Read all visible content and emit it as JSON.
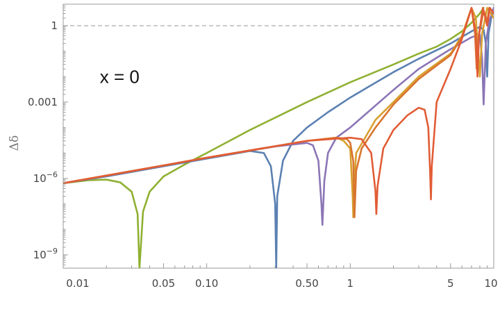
{
  "chart_data": {
    "type": "line",
    "xscale": "log",
    "yscale": "log",
    "xlim": [
      0.01,
      10
    ],
    "ylim": [
      3e-10,
      7
    ],
    "ylabel": "Δδ",
    "xlabel": "",
    "x_ticks": [
      {
        "value": 0.01,
        "label": "0.01"
      },
      {
        "value": 0.05,
        "label": "0.05"
      },
      {
        "value": 0.1,
        "label": "0.10"
      },
      {
        "value": 0.5,
        "label": "0.50"
      },
      {
        "value": 1,
        "label": "1"
      },
      {
        "value": 5,
        "label": "5"
      },
      {
        "value": 10,
        "label": "10"
      }
    ],
    "y_ticks": [
      {
        "value": 1,
        "label": "1"
      },
      {
        "value": 0.001,
        "label": "0.001"
      },
      {
        "value": 1e-06,
        "label": "10^-6",
        "base": "10",
        "exp": "−6"
      },
      {
        "value": 1e-09,
        "label": "10^-9",
        "base": "10",
        "exp": "−9"
      }
    ],
    "reference_line": {
      "y": 1,
      "style": "dashed",
      "color": "#aaaaaa"
    },
    "annotation": {
      "text": "x = 0",
      "x": 0.018,
      "y": 0.01
    },
    "grid": false,
    "legend": "none",
    "series": [
      {
        "color": "#8fb031",
        "points": [
          [
            0.01,
            6.5e-07
          ],
          [
            0.015,
            8.5e-07
          ],
          [
            0.02,
            9e-07
          ],
          [
            0.025,
            7e-07
          ],
          [
            0.03,
            3e-07
          ],
          [
            0.033,
            4e-08
          ],
          [
            0.034,
            3e-10
          ],
          [
            0.036,
            5e-08
          ],
          [
            0.04,
            3e-07
          ],
          [
            0.05,
            1.2e-06
          ],
          [
            0.07,
            3.5e-06
          ],
          [
            0.1,
            1e-05
          ],
          [
            0.2,
            8e-05
          ],
          [
            0.5,
            0.001
          ],
          [
            1,
            0.006
          ],
          [
            2,
            0.03
          ],
          [
            3,
            0.08
          ],
          [
            4,
            0.15
          ],
          [
            5,
            0.3
          ],
          [
            6,
            0.6
          ],
          [
            7,
            1.3
          ],
          [
            8,
            3
          ],
          [
            8.5,
            5
          ]
        ]
      },
      {
        "color": "#5b80b2",
        "points": [
          [
            0.01,
            6.5e-07
          ],
          [
            0.02,
            1.2e-06
          ],
          [
            0.05,
            3e-06
          ],
          [
            0.1,
            6e-06
          ],
          [
            0.2,
            1.2e-05
          ],
          [
            0.25,
            1e-05
          ],
          [
            0.28,
            3e-06
          ],
          [
            0.3,
            1e-07
          ],
          [
            0.305,
            3e-10
          ],
          [
            0.31,
            2e-07
          ],
          [
            0.34,
            5e-06
          ],
          [
            0.4,
            3e-05
          ],
          [
            0.5,
            0.0001
          ],
          [
            0.7,
            0.0004
          ],
          [
            1,
            0.0015
          ],
          [
            2,
            0.015
          ],
          [
            3,
            0.05
          ],
          [
            5,
            0.2
          ],
          [
            7,
            0.6
          ],
          [
            8,
            0.9
          ],
          [
            8.5,
            0.7
          ],
          [
            8.8,
            0.2
          ],
          [
            9,
            0.01
          ],
          [
            9.2,
            0.5
          ],
          [
            9.6,
            2
          ],
          [
            10,
            5
          ]
        ]
      },
      {
        "color": "#8b75b6",
        "points": [
          [
            0.01,
            6.5e-07
          ],
          [
            0.05,
            3.2e-06
          ],
          [
            0.1,
            6.5e-06
          ],
          [
            0.3,
            1.8e-05
          ],
          [
            0.5,
            2.5e-05
          ],
          [
            0.55,
            2e-05
          ],
          [
            0.6,
            5e-06
          ],
          [
            0.63,
            1e-07
          ],
          [
            0.64,
            1.5e-08
          ],
          [
            0.66,
            8e-07
          ],
          [
            0.7,
            1e-05
          ],
          [
            0.8,
            4e-05
          ],
          [
            1,
            0.0001
          ],
          [
            2,
            0.003
          ],
          [
            3,
            0.02
          ],
          [
            5,
            0.12
          ],
          [
            7,
            0.35
          ],
          [
            8,
            0.45
          ],
          [
            8.3,
            0.05
          ],
          [
            8.5,
            0.0008
          ],
          [
            8.8,
            0.2
          ],
          [
            9.3,
            1.5
          ],
          [
            10,
            5
          ]
        ]
      },
      {
        "color": "#d89f2f",
        "points": [
          [
            0.01,
            6.5e-07
          ],
          [
            0.1,
            6.5e-06
          ],
          [
            0.5,
            3e-05
          ],
          [
            0.8,
            4e-05
          ],
          [
            0.9,
            3e-05
          ],
          [
            1,
            1.5e-05
          ],
          [
            1.04,
            2e-07
          ],
          [
            1.05,
            3e-08
          ],
          [
            1.07,
            1e-06
          ],
          [
            1.1,
            1e-05
          ],
          [
            1.3,
            5e-05
          ],
          [
            1.5,
            0.0002
          ],
          [
            2,
            0.001
          ],
          [
            3,
            0.01
          ],
          [
            5,
            0.08
          ],
          [
            6,
            0.4
          ],
          [
            6.5,
            1.5
          ],
          [
            7,
            5
          ],
          [
            7.5,
            2
          ],
          [
            7.8,
            0.1
          ],
          [
            8,
            0.01
          ],
          [
            8.3,
            0.5
          ],
          [
            9,
            5
          ],
          [
            10,
            2
          ]
        ]
      },
      {
        "color": "#d8752f",
        "points": [
          [
            0.01,
            6.5e-07
          ],
          [
            0.1,
            6.5e-06
          ],
          [
            0.5,
            3e-05
          ],
          [
            0.8,
            4e-05
          ],
          [
            0.95,
            3.5e-05
          ],
          [
            1,
            2.5e-05
          ],
          [
            1.05,
            5e-06
          ],
          [
            1.07,
            3e-08
          ],
          [
            1.1,
            2e-06
          ],
          [
            1.2,
            1.5e-05
          ],
          [
            1.5,
            0.0001
          ],
          [
            2,
            0.0008
          ],
          [
            3,
            0.008
          ],
          [
            5,
            0.07
          ],
          [
            6,
            0.35
          ],
          [
            7,
            5
          ],
          [
            7.4,
            0.5
          ],
          [
            7.6,
            0.02
          ],
          [
            7.8,
            0.3
          ],
          [
            8.5,
            4
          ],
          [
            9,
            1.5
          ],
          [
            9.3,
            5
          ],
          [
            10,
            3
          ]
        ]
      },
      {
        "color": "#e15c35",
        "points": [
          [
            0.01,
            6.5e-07
          ],
          [
            0.1,
            6.5e-06
          ],
          [
            0.5,
            3e-05
          ],
          [
            1,
            4e-05
          ],
          [
            1.2,
            3.5e-05
          ],
          [
            1.4,
            1e-05
          ],
          [
            1.5,
            3e-07
          ],
          [
            1.52,
            4e-08
          ],
          [
            1.55,
            5e-07
          ],
          [
            1.7,
            1.5e-05
          ],
          [
            2,
            8e-05
          ],
          [
            2.5,
            0.0003
          ],
          [
            3,
            0.0006
          ],
          [
            3.3,
            0.0005
          ],
          [
            3.5,
            0.0001
          ],
          [
            3.6,
            2e-06
          ],
          [
            3.65,
            1.5e-07
          ],
          [
            3.7,
            3e-06
          ],
          [
            4,
            0.001
          ],
          [
            5,
            0.02
          ],
          [
            6,
            0.3
          ],
          [
            7,
            5
          ],
          [
            7.5,
            0.5
          ],
          [
            7.7,
            0.01
          ],
          [
            7.9,
            0.5
          ],
          [
            8.4,
            5
          ],
          [
            9,
            1
          ],
          [
            9.4,
            5
          ],
          [
            10,
            3
          ]
        ]
      }
    ]
  }
}
